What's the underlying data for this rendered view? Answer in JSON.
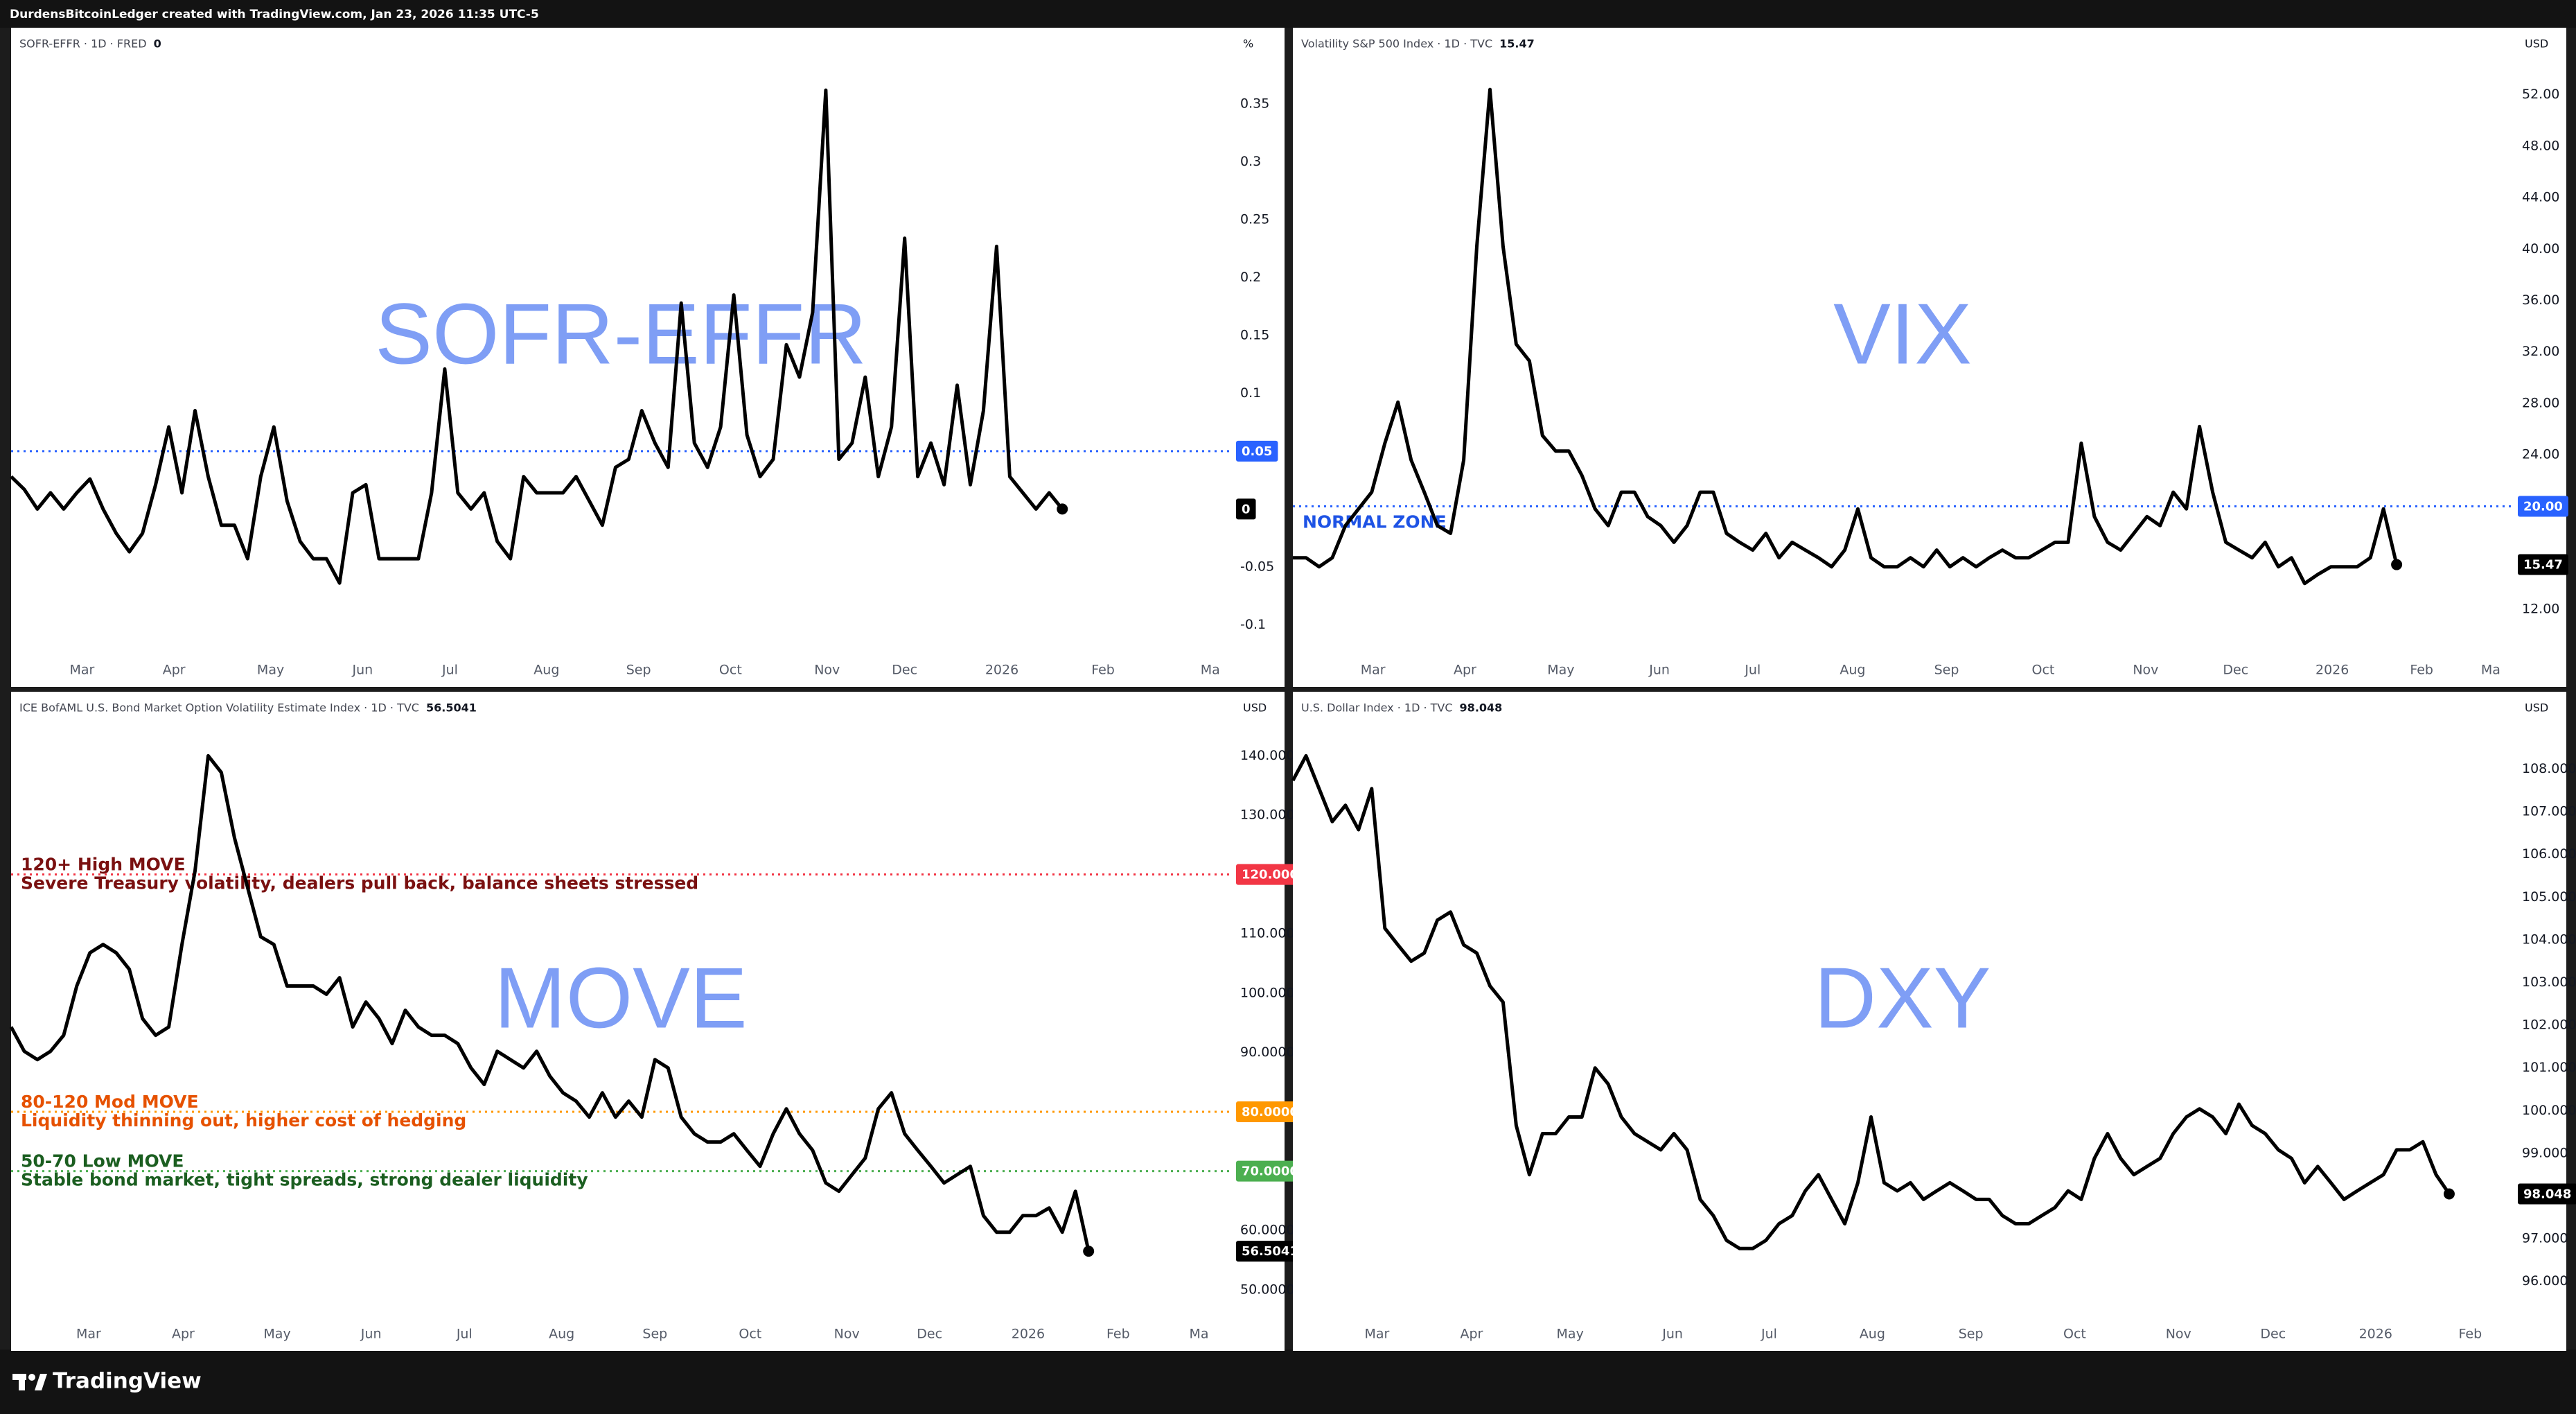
{
  "header": {
    "text": "DurdensBitcoinLedger created with TradingView.com, Jan 23, 2026 11:35 UTC-5"
  },
  "footer": {
    "brand": "TradingView"
  },
  "chart_data": [
    {
      "type": "line",
      "title": "SOFR-EFFR · 1D · FRED",
      "last_value": 0,
      "watermark": "SOFR-EFFR",
      "unit": "%",
      "color": "#000000",
      "values": [
        0.028,
        0.017,
        0,
        0.014,
        0,
        0.014,
        0.026,
        0,
        -0.021,
        -0.037,
        -0.021,
        0.021,
        0.071,
        0.014,
        0.085,
        0.028,
        -0.014,
        -0.014,
        -0.043,
        0.028,
        0.071,
        0.007,
        -0.028,
        -0.043,
        -0.043,
        -0.064,
        0.014,
        0.021,
        -0.043,
        -0.043,
        -0.043,
        -0.043,
        0.014,
        0.121,
        0.014,
        0,
        0.014,
        -0.028,
        -0.043,
        0.028,
        0.014,
        0.014,
        0.014,
        0.028,
        0.007,
        -0.014,
        0.036,
        0.043,
        0.085,
        0.057,
        0.036,
        0.178,
        0.057,
        0.036,
        0.071,
        0.185,
        0.064,
        0.028,
        0.043,
        0.142,
        0.114,
        0.17,
        0.362,
        0.043,
        0.057,
        0.114,
        0.028,
        0.071,
        0.234,
        0.028,
        0.057,
        0.021,
        0.107,
        0.021,
        0.085,
        0.227,
        0.028,
        0.014,
        0,
        0.014,
        0
      ],
      "xlim": [
        0,
        92.8
      ],
      "xticks": [
        {
          "value": 5.4,
          "label": "Mar"
        },
        {
          "value": 12.4,
          "label": "Apr"
        },
        {
          "value": 19.75,
          "label": "May"
        },
        {
          "value": 26.75,
          "label": "Jun"
        },
        {
          "value": 33.4,
          "label": "Jul"
        },
        {
          "value": 40.75,
          "label": "Aug"
        },
        {
          "value": 47.75,
          "label": "Sep"
        },
        {
          "value": 54.75,
          "label": "Oct"
        },
        {
          "value": 62.1,
          "label": "Nov"
        },
        {
          "value": 68,
          "label": "Dec"
        },
        {
          "value": 75.4,
          "label": "2026"
        },
        {
          "value": 83.1,
          "label": "Feb"
        },
        {
          "value": 92,
          "label": "Ma"
        }
      ],
      "ylim": [
        -0.125,
        0.416
      ],
      "yticks": [
        0.35,
        0.3,
        0.25,
        0.2,
        0.15,
        0.1,
        -0.05,
        -0.1
      ],
      "levels": [
        {
          "value": 0.05,
          "label": "0.05",
          "color": "#2962ff",
          "text_color": "#2962ff",
          "annotation": []
        }
      ]
    },
    {
      "type": "line",
      "title": "Volatility S&P 500 Index · 1D · TVC",
      "last_value": 15.47,
      "watermark": "VIX",
      "unit": "USD",
      "color": "#000000",
      "values": [
        16.0,
        16.0,
        15.3,
        16.0,
        18.5,
        19.8,
        21.1,
        24.9,
        28.1,
        23.6,
        21.1,
        18.5,
        17.9,
        23.6,
        40.2,
        52.4,
        40.2,
        32.6,
        31.3,
        25.5,
        24.3,
        24.3,
        22.4,
        19.8,
        18.5,
        21.1,
        21.1,
        19.2,
        18.5,
        17.2,
        18.5,
        21.1,
        21.1,
        17.9,
        17.2,
        16.6,
        17.9,
        16.0,
        17.2,
        16.6,
        16.0,
        15.3,
        16.6,
        19.8,
        16.0,
        15.3,
        15.3,
        16.0,
        15.3,
        16.6,
        15.3,
        16.0,
        15.3,
        16.0,
        16.6,
        16.0,
        16.0,
        16.6,
        17.2,
        17.2,
        24.9,
        19.2,
        17.2,
        16.6,
        17.9,
        19.2,
        18.5,
        21.1,
        19.8,
        26.2,
        21.1,
        17.2,
        16.6,
        16.0,
        17.2,
        15.3,
        16.0,
        14.0,
        14.7,
        15.3,
        15.3,
        15.3,
        16.0,
        19.8,
        15.47
      ],
      "xlim": [
        0,
        92.8
      ],
      "xticks": [
        {
          "value": 6.1,
          "label": "Mar"
        },
        {
          "value": 13.1,
          "label": "Apr"
        },
        {
          "value": 20.4,
          "label": "May"
        },
        {
          "value": 27.9,
          "label": "Jun"
        },
        {
          "value": 35,
          "label": "Jul"
        },
        {
          "value": 42.6,
          "label": "Aug"
        },
        {
          "value": 49.75,
          "label": "Sep"
        },
        {
          "value": 57.1,
          "label": "Oct"
        },
        {
          "value": 64.9,
          "label": "Nov"
        },
        {
          "value": 71.75,
          "label": "Dec"
        },
        {
          "value": 79.1,
          "label": "2026"
        },
        {
          "value": 85.9,
          "label": "Feb"
        },
        {
          "value": 91.9,
          "label": "Ma"
        }
      ],
      "ylim": [
        8.55,
        57.2
      ],
      "yticks": [
        {
          "value": 12,
          "label": "12.00"
        },
        {
          "value": 24,
          "label": "24.00"
        },
        {
          "value": 28,
          "label": "28.00"
        },
        {
          "value": 32,
          "label": "32.00"
        },
        {
          "value": 36,
          "label": "36.00"
        },
        {
          "value": 40,
          "label": "40.00"
        },
        {
          "value": 44,
          "label": "44.00"
        },
        {
          "value": 48,
          "label": "48.00"
        },
        {
          "value": 52,
          "label": "52.00"
        }
      ],
      "levels": [
        {
          "value": 20,
          "label": "20.00",
          "color": "#2962ff",
          "text_color": "#1e53e5",
          "annotation": [
            "NORMAL ZONE"
          ]
        }
      ]
    },
    {
      "type": "line",
      "title": "ICE BofAML U.S. Bond Market Option Volatility Estimate Index · 1D · TVC",
      "last_value": 56.5041,
      "watermark": "MOVE",
      "unit": "USD",
      "color": "#000000",
      "values": [
        94.3,
        90.2,
        88.8,
        90.2,
        92.9,
        101.2,
        106.8,
        108.2,
        106.8,
        104.0,
        95.7,
        92.9,
        94.3,
        108.2,
        120.6,
        140.0,
        137.2,
        126.2,
        117.8,
        109.5,
        108.2,
        101.2,
        101.2,
        101.2,
        99.8,
        102.6,
        94.3,
        98.5,
        95.7,
        91.5,
        97.1,
        94.3,
        92.9,
        92.9,
        91.5,
        87.4,
        84.6,
        90.2,
        88.8,
        87.4,
        90.2,
        86.0,
        83.2,
        81.8,
        79.1,
        83.2,
        79.1,
        81.8,
        79.1,
        88.8,
        87.4,
        79.1,
        76.3,
        74.9,
        74.9,
        76.3,
        73.5,
        70.8,
        76.3,
        80.5,
        76.3,
        73.5,
        68.0,
        66.6,
        69.4,
        72.2,
        80.5,
        83.2,
        76.3,
        73.5,
        70.8,
        68.0,
        69.4,
        70.8,
        62.5,
        59.7,
        59.7,
        62.5,
        62.5,
        63.8,
        59.7,
        66.6,
        56.5041
      ],
      "xlim": [
        0,
        92.8
      ],
      "xticks": [
        {
          "value": 5.9,
          "label": "Mar"
        },
        {
          "value": 13.1,
          "label": "Apr"
        },
        {
          "value": 20.25,
          "label": "May"
        },
        {
          "value": 27.4,
          "label": "Jun"
        },
        {
          "value": 34.5,
          "label": "Jul"
        },
        {
          "value": 41.9,
          "label": "Aug"
        },
        {
          "value": 49,
          "label": "Sep"
        },
        {
          "value": 56.25,
          "label": "Oct"
        },
        {
          "value": 63.6,
          "label": "Nov"
        },
        {
          "value": 69.9,
          "label": "Dec"
        },
        {
          "value": 77.4,
          "label": "2026"
        },
        {
          "value": 84.25,
          "label": "Feb"
        },
        {
          "value": 90.4,
          "label": "Ma"
        }
      ],
      "ylim": [
        45.3,
        150.8
      ],
      "yticks": [
        {
          "value": 50,
          "label": "50.0000"
        },
        {
          "value": 60,
          "label": "60.0000"
        },
        {
          "value": 90,
          "label": "90.0000"
        },
        {
          "value": 100,
          "label": "100.0000"
        },
        {
          "value": 110,
          "label": "110.0000"
        },
        {
          "value": 130,
          "label": "130.0000"
        },
        {
          "value": 140,
          "label": "140.0000"
        }
      ],
      "levels": [
        {
          "value": 120,
          "label": "120.0000",
          "color": "#f23645",
          "text_color": "#7a1010",
          "annotation": [
            "120+ High MOVE",
            "Severe Treasury volatility, dealers pull back, balance sheets stressed"
          ]
        },
        {
          "value": 80,
          "label": "80.0000",
          "color": "#ff9800",
          "text_color": "#e65100",
          "annotation": [
            "80-120 Mod MOVE",
            "Liquidity thinning out, higher cost of hedging"
          ]
        },
        {
          "value": 70,
          "label": "70.0000",
          "color": "#4caf50",
          "text_color": "#1b5e20",
          "annotation": [
            "50-70 Low MOVE",
            "Stable bond market, tight spreads, strong dealer liquidity"
          ]
        }
      ]
    },
    {
      "type": "line",
      "title": "U.S. Dollar Index · 1D · TVC",
      "last_value": 98.048,
      "watermark": "DXY",
      "unit": "USD",
      "color": "#000000",
      "values": [
        107.73,
        108.31,
        107.54,
        106.77,
        107.15,
        106.58,
        107.54,
        104.27,
        103.88,
        103.5,
        103.69,
        104.46,
        104.65,
        103.88,
        103.69,
        102.92,
        102.54,
        99.65,
        98.5,
        99.46,
        99.46,
        99.85,
        99.85,
        101.0,
        100.62,
        99.85,
        99.46,
        99.27,
        99.08,
        99.46,
        99.08,
        97.92,
        97.54,
        96.96,
        96.77,
        96.77,
        96.96,
        97.35,
        97.54,
        98.12,
        98.5,
        97.92,
        97.35,
        98.31,
        99.85,
        98.31,
        98.12,
        98.31,
        97.92,
        98.12,
        98.31,
        98.12,
        97.92,
        97.92,
        97.54,
        97.35,
        97.35,
        97.54,
        97.73,
        98.12,
        97.92,
        98.88,
        99.46,
        98.88,
        98.5,
        98.69,
        98.88,
        99.46,
        99.85,
        100.04,
        99.85,
        99.46,
        100.15,
        99.65,
        99.46,
        99.08,
        98.88,
        98.31,
        98.69,
        98.31,
        97.92,
        98.12,
        98.31,
        98.5,
        99.08,
        99.08,
        99.27,
        98.5,
        98.048
      ],
      "xlim": [
        0,
        92.8
      ],
      "xticks": [
        {
          "value": 6.4,
          "label": "Mar"
        },
        {
          "value": 13.6,
          "label": "Apr"
        },
        {
          "value": 21.1,
          "label": "May"
        },
        {
          "value": 28.9,
          "label": "Jun"
        },
        {
          "value": 36.25,
          "label": "Jul"
        },
        {
          "value": 44.1,
          "label": "Aug"
        },
        {
          "value": 51.6,
          "label": "Sep"
        },
        {
          "value": 59.5,
          "label": "Oct"
        },
        {
          "value": 67.4,
          "label": "Nov"
        },
        {
          "value": 74.6,
          "label": "Dec"
        },
        {
          "value": 82.4,
          "label": "2026"
        },
        {
          "value": 89.6,
          "label": "Feb"
        }
      ],
      "ylim": [
        95.15,
        109.81
      ],
      "yticks": [
        {
          "value": 96,
          "label": "96.000"
        },
        {
          "value": 97,
          "label": "97.000"
        },
        {
          "value": 99,
          "label": "99.000"
        },
        {
          "value": 100,
          "label": "100.000"
        },
        {
          "value": 101,
          "label": "101.000"
        },
        {
          "value": 102,
          "label": "102.000"
        },
        {
          "value": 103,
          "label": "103.000"
        },
        {
          "value": 104,
          "label": "104.000"
        },
        {
          "value": 105,
          "label": "105.000"
        },
        {
          "value": 106,
          "label": "106.000"
        },
        {
          "value": 107,
          "label": "107.000"
        },
        {
          "value": 108,
          "label": "108.000"
        }
      ],
      "levels": []
    }
  ]
}
